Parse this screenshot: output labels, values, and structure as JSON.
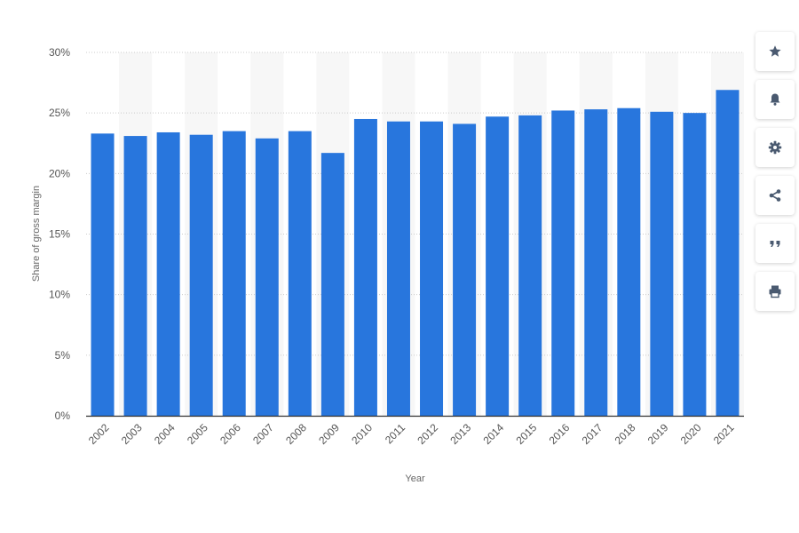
{
  "chart_data": {
    "type": "bar",
    "categories": [
      "2002",
      "2003",
      "2004",
      "2005",
      "2006",
      "2007",
      "2008",
      "2009",
      "2010",
      "2011",
      "2012",
      "2013",
      "2014",
      "2015",
      "2016",
      "2017",
      "2018",
      "2019",
      "2020",
      "2021"
    ],
    "values": [
      23.3,
      23.1,
      23.4,
      23.2,
      23.5,
      22.9,
      23.5,
      21.7,
      24.5,
      24.3,
      24.3,
      24.1,
      24.7,
      24.8,
      25.2,
      25.3,
      25.4,
      25.1,
      25.0,
      26.9
    ],
    "xlabel": "Year",
    "ylabel": "Share of gross margin",
    "ylim": [
      0,
      30
    ],
    "yticks": [
      0,
      5,
      10,
      15,
      20,
      25,
      30
    ],
    "ytick_labels": [
      "0%",
      "5%",
      "10%",
      "15%",
      "20%",
      "25%",
      "30%"
    ],
    "bar_color": "#2876dd",
    "grid": true,
    "alternating_column_bands": true
  },
  "toolbar": [
    {
      "name": "star-button",
      "icon": "star-icon"
    },
    {
      "name": "notification-button",
      "icon": "bell-icon"
    },
    {
      "name": "settings-button",
      "icon": "gear-icon"
    },
    {
      "name": "share-button",
      "icon": "share-icon"
    },
    {
      "name": "cite-button",
      "icon": "quote-icon"
    },
    {
      "name": "print-button",
      "icon": "print-icon"
    }
  ]
}
